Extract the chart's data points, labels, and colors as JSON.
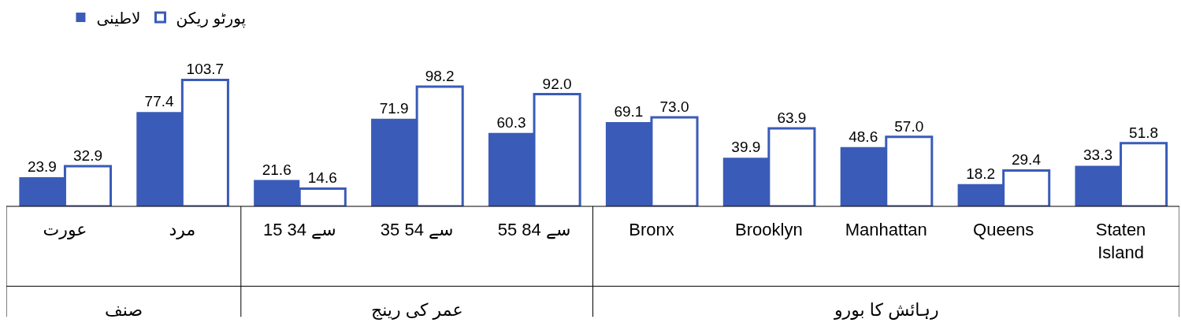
{
  "chart_data": {
    "type": "bar",
    "categories": [
      "عورت",
      "مرد",
      "15 سے 34",
      "35 سے 54",
      "55 سے 84",
      "Bronx",
      "Brooklyn",
      "Manhattan",
      "Queens",
      "Staten Island"
    ],
    "series": [
      {
        "name": "لاطینی",
        "color": "#3a5bb8",
        "values": [
          23.9,
          77.4,
          21.6,
          71.9,
          60.3,
          69.1,
          39.9,
          48.6,
          18.2,
          33.3
        ],
        "value_labels": [
          "23.9",
          "77.4",
          "21.6",
          "71.9",
          "60.3",
          "69.1",
          "39.9",
          "48.6",
          "18.2",
          "33.3"
        ]
      },
      {
        "name": "پورٹو ریکن",
        "color": "#ffffff",
        "values": [
          32.9,
          103.7,
          14.6,
          98.2,
          92.0,
          73.0,
          63.9,
          57.0,
          29.4,
          51.8
        ],
        "value_labels": [
          "32.9",
          "103.7",
          "14.6",
          "98.2",
          "92.0",
          "73.0",
          "63.9",
          "57.0",
          "29.4",
          "51.8"
        ]
      }
    ],
    "annotations": [
      "صنف",
      "عمر کی رینج",
      "رہائش کا بورو"
    ],
    "legend": "top left"
  }
}
